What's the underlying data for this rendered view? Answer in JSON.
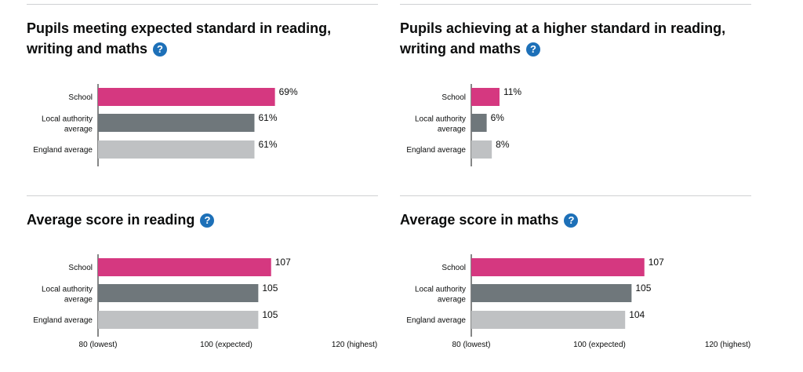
{
  "colors": {
    "school": "#d53880",
    "local_authority": "#6f777b",
    "england": "#bfc1c3",
    "help_icon": "#1d70b8"
  },
  "help_icon": "question-mark-icon",
  "chart_data": [
    {
      "type": "bar",
      "orientation": "horizontal",
      "title": "Pupils meeting expected standard in reading, writing and maths",
      "categories": [
        "School",
        "Local authority average",
        "England average"
      ],
      "values": [
        69,
        61,
        61
      ],
      "value_labels": [
        "69%",
        "61%",
        "61%"
      ],
      "xlim": [
        0,
        100
      ],
      "grid": false
    },
    {
      "type": "bar",
      "orientation": "horizontal",
      "title": "Pupils achieving at a higher standard in reading, writing and maths",
      "categories": [
        "School",
        "Local authority average",
        "England average"
      ],
      "values": [
        11,
        6,
        8
      ],
      "value_labels": [
        "11%",
        "6%",
        "8%"
      ],
      "xlim": [
        0,
        100
      ],
      "grid": false
    },
    {
      "type": "bar",
      "orientation": "horizontal",
      "title": "Average score in reading",
      "categories": [
        "School",
        "Local authority average",
        "England average"
      ],
      "values": [
        107,
        105,
        105
      ],
      "value_labels": [
        "107",
        "105",
        "105"
      ],
      "xlim": [
        80,
        120
      ],
      "xticks": [
        80,
        100,
        120
      ],
      "xtick_labels": [
        "80 (lowest)",
        "100 (expected)",
        "120 (highest)"
      ],
      "grid": false
    },
    {
      "type": "bar",
      "orientation": "horizontal",
      "title": "Average score in maths",
      "categories": [
        "School",
        "Local authority average",
        "England average"
      ],
      "values": [
        107,
        105,
        104
      ],
      "value_labels": [
        "107",
        "105",
        "104"
      ],
      "xlim": [
        80,
        120
      ],
      "xticks": [
        80,
        100,
        120
      ],
      "xtick_labels": [
        "80 (lowest)",
        "100 (expected)",
        "120 (highest)"
      ],
      "grid": false
    }
  ]
}
